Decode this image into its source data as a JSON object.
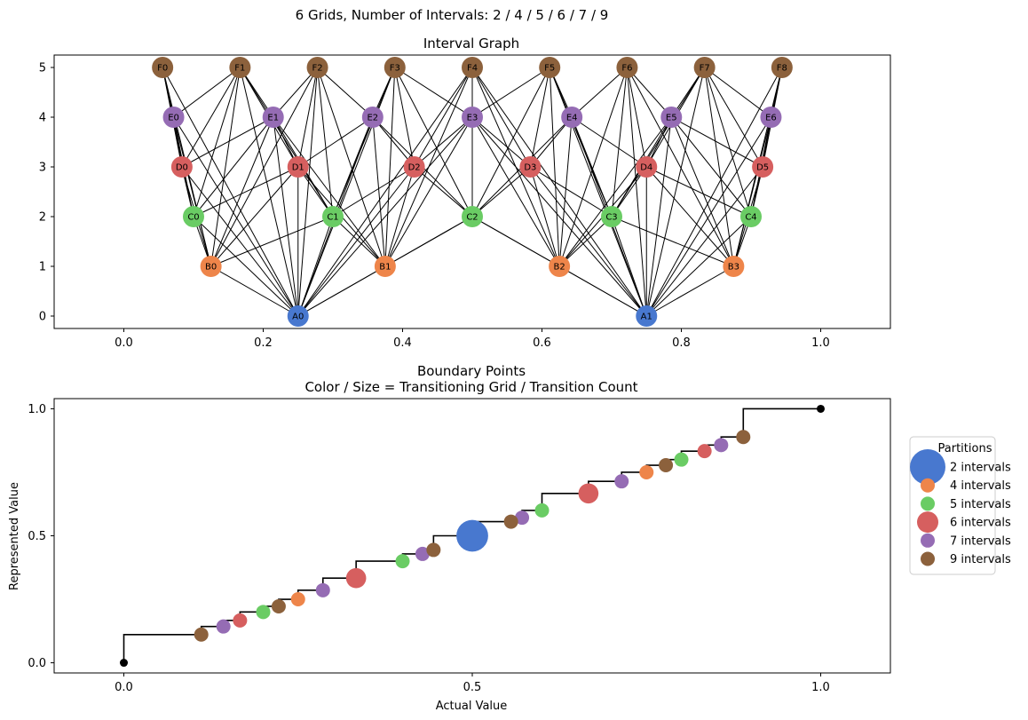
{
  "figure": {
    "suptitle": "6 Grids, Number of Intervals: 2 / 4 / 5 / 6 / 7 / 9"
  },
  "colors": {
    "blue": "#4878cf",
    "orange": "#ee854a",
    "green": "#6acc64",
    "red": "#d65f5f",
    "purple": "#956cb4",
    "brown": "#8c613c",
    "black": "#000000"
  },
  "chart_data": [
    {
      "type": "network",
      "title": "Interval Graph",
      "xlim": [
        -0.1,
        1.1
      ],
      "ylim": [
        -0.25,
        5.25
      ],
      "xticks": [
        "0.0",
        "0.2",
        "0.4",
        "0.6",
        "0.8",
        "1.0"
      ],
      "yticks": [
        "0",
        "1",
        "2",
        "3",
        "4",
        "5"
      ],
      "levels": [
        {
          "level": 0,
          "color": "#4878cf",
          "nodes": [
            {
              "label": "A0",
              "x": 0.25
            },
            {
              "label": "A1",
              "x": 0.75
            }
          ]
        },
        {
          "level": 1,
          "color": "#ee854a",
          "nodes": [
            {
              "label": "B0",
              "x": 0.125
            },
            {
              "label": "B1",
              "x": 0.375
            },
            {
              "label": "B2",
              "x": 0.625
            },
            {
              "label": "B3",
              "x": 0.875
            }
          ]
        },
        {
          "level": 2,
          "color": "#6acc64",
          "nodes": [
            {
              "label": "C0",
              "x": 0.1
            },
            {
              "label": "C1",
              "x": 0.3
            },
            {
              "label": "C2",
              "x": 0.5
            },
            {
              "label": "C3",
              "x": 0.7
            },
            {
              "label": "C4",
              "x": 0.9
            }
          ]
        },
        {
          "level": 3,
          "color": "#d65f5f",
          "nodes": [
            {
              "label": "D0",
              "x": 0.0833
            },
            {
              "label": "D1",
              "x": 0.25
            },
            {
              "label": "D2",
              "x": 0.4167
            },
            {
              "label": "D3",
              "x": 0.5833
            },
            {
              "label": "D4",
              "x": 0.75
            },
            {
              "label": "D5",
              "x": 0.9167
            }
          ]
        },
        {
          "level": 4,
          "color": "#956cb4",
          "nodes": [
            {
              "label": "E0",
              "x": 0.0714
            },
            {
              "label": "E1",
              "x": 0.2143
            },
            {
              "label": "E2",
              "x": 0.3571
            },
            {
              "label": "E3",
              "x": 0.5
            },
            {
              "label": "E4",
              "x": 0.6429
            },
            {
              "label": "E5",
              "x": 0.7857
            },
            {
              "label": "E6",
              "x": 0.9286
            }
          ]
        },
        {
          "level": 5,
          "color": "#8c613c",
          "nodes": [
            {
              "label": "F0",
              "x": 0.0556
            },
            {
              "label": "F1",
              "x": 0.1667
            },
            {
              "label": "F2",
              "x": 0.2778
            },
            {
              "label": "F3",
              "x": 0.3889
            },
            {
              "label": "F4",
              "x": 0.5
            },
            {
              "label": "F5",
              "x": 0.6111
            },
            {
              "label": "F6",
              "x": 0.7222
            },
            {
              "label": "F7",
              "x": 0.8333
            },
            {
              "label": "F8",
              "x": 0.9444
            }
          ]
        }
      ],
      "edges": "every pair of intervals on different levels whose ranges overlap"
    },
    {
      "type": "scatter",
      "title": "Boundary Points\nColor / Size = Transitioning Grid / Transition Count",
      "title_lines": [
        "Boundary Points",
        "Color / Size = Transitioning Grid / Transition Count"
      ],
      "xlabel": "Actual Value",
      "ylabel": "Represented Value",
      "xlim": [
        -0.1,
        1.1
      ],
      "ylim": [
        -0.04,
        1.04
      ],
      "xticks": [
        "0.0",
        "0.5",
        "1.0"
      ],
      "yticks": [
        "0.0",
        "0.5",
        "1.0"
      ],
      "endpoints": [
        [
          0,
          0
        ],
        [
          1,
          1
        ]
      ],
      "step_line": [
        [
          0,
          0.1111
        ],
        [
          0.1111,
          0.1429
        ],
        [
          0.1429,
          0.1667
        ],
        [
          0.1667,
          0.2
        ],
        [
          0.2,
          0.2222
        ],
        [
          0.2222,
          0.25
        ],
        [
          0.25,
          0.2857
        ],
        [
          0.2857,
          0.3333
        ],
        [
          0.3333,
          0.4
        ],
        [
          0.4,
          0.4286
        ],
        [
          0.4286,
          0.4444
        ],
        [
          0.4444,
          0.5
        ],
        [
          0.5,
          0.5556
        ],
        [
          0.5556,
          0.5714
        ],
        [
          0.5714,
          0.6
        ],
        [
          0.6,
          0.6667
        ],
        [
          0.6667,
          0.7143
        ],
        [
          0.7143,
          0.75
        ],
        [
          0.75,
          0.7778
        ],
        [
          0.7778,
          0.8
        ],
        [
          0.8,
          0.8333
        ],
        [
          0.8333,
          0.8571
        ],
        [
          0.8571,
          0.8889
        ],
        [
          0.8889,
          1.0
        ]
      ],
      "legend": {
        "title": "Partitions",
        "placement": "right, outside",
        "entries": [
          {
            "label": "2 intervals",
            "color": "#4878cf",
            "intervals": 2
          },
          {
            "label": "4 intervals",
            "color": "#ee854a",
            "intervals": 4
          },
          {
            "label": "5 intervals",
            "color": "#6acc64",
            "intervals": 5
          },
          {
            "label": "6 intervals",
            "color": "#d65f5f",
            "intervals": 6
          },
          {
            "label": "7 intervals",
            "color": "#956cb4",
            "intervals": 7
          },
          {
            "label": "9 intervals",
            "color": "#8c613c",
            "intervals": 9
          }
        ]
      },
      "series": [
        {
          "name": "2 intervals",
          "color": "#4878cf",
          "points": [
            {
              "x": 0.5,
              "y": 0.5,
              "count": 5
            }
          ]
        },
        {
          "name": "4 intervals",
          "color": "#ee854a",
          "points": [
            {
              "x": 0.25,
              "y": 0.25,
              "count": 1
            },
            {
              "x": 0.75,
              "y": 0.75,
              "count": 1
            }
          ]
        },
        {
          "name": "5 intervals",
          "color": "#6acc64",
          "points": [
            {
              "x": 0.2,
              "y": 0.2,
              "count": 1
            },
            {
              "x": 0.4,
              "y": 0.4,
              "count": 1
            },
            {
              "x": 0.6,
              "y": 0.6,
              "count": 1
            },
            {
              "x": 0.8,
              "y": 0.8,
              "count": 1
            }
          ]
        },
        {
          "name": "6 intervals",
          "color": "#d65f5f",
          "points": [
            {
              "x": 0.1667,
              "y": 0.1667,
              "count": 1
            },
            {
              "x": 0.3333,
              "y": 0.3333,
              "count": 2
            },
            {
              "x": 0.6667,
              "y": 0.6667,
              "count": 2
            },
            {
              "x": 0.8333,
              "y": 0.8333,
              "count": 1
            }
          ]
        },
        {
          "name": "7 intervals",
          "color": "#956cb4",
          "points": [
            {
              "x": 0.1429,
              "y": 0.1429,
              "count": 1
            },
            {
              "x": 0.2857,
              "y": 0.2857,
              "count": 1
            },
            {
              "x": 0.4286,
              "y": 0.4286,
              "count": 1
            },
            {
              "x": 0.5714,
              "y": 0.5714,
              "count": 1
            },
            {
              "x": 0.7143,
              "y": 0.7143,
              "count": 1
            },
            {
              "x": 0.8571,
              "y": 0.8571,
              "count": 1
            }
          ]
        },
        {
          "name": "9 intervals",
          "color": "#8c613c",
          "points": [
            {
              "x": 0.1111,
              "y": 0.1111,
              "count": 1
            },
            {
              "x": 0.2222,
              "y": 0.2222,
              "count": 1
            },
            {
              "x": 0.4444,
              "y": 0.4444,
              "count": 1
            },
            {
              "x": 0.5556,
              "y": 0.5556,
              "count": 1
            },
            {
              "x": 0.7778,
              "y": 0.7778,
              "count": 1
            },
            {
              "x": 0.8889,
              "y": 0.8889,
              "count": 1
            }
          ]
        }
      ]
    }
  ]
}
